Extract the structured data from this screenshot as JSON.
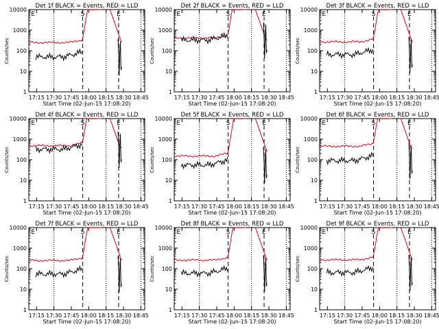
{
  "chart_data": [
    {
      "type": "line",
      "title": "Det 1f BLACK = Events, RED = LLD",
      "xlabel": "Start Time (02-Jun-15 17:08:20)",
      "ylabel": "Counts/sec",
      "yscale": "log",
      "ylim": [
        1,
        10000
      ],
      "xlim_minutes": [
        0,
        100
      ],
      "xticks": [
        "17:15",
        "17:30",
        "17:45",
        "18:00",
        "18:15",
        "18:30",
        "18:45"
      ],
      "markers": [
        "E",
        "S",
        "E"
      ],
      "events_level": 50,
      "lld_level": 250,
      "series": [
        {
          "name": "BLACK = Events",
          "color": "#000000"
        },
        {
          "name": "RED = LLD",
          "color": "#e0001a"
        }
      ]
    },
    {
      "type": "line",
      "title": "Det 2f BLACK = Events, RED = LLD",
      "xlabel": "Start Time (02-Jun-15 17:08:20)",
      "ylabel": "Counts/sec",
      "yscale": "log",
      "ylim": [
        1,
        10000
      ],
      "xlim_minutes": [
        0,
        100
      ],
      "xticks": [
        "17:15",
        "17:30",
        "17:45",
        "18:00",
        "18:15",
        "18:30",
        "18:45"
      ],
      "markers": [
        "E",
        "S",
        "E"
      ],
      "events_level": 330,
      "lld_level": 420,
      "series": [
        {
          "name": "BLACK = Events",
          "color": "#000000"
        },
        {
          "name": "RED = LLD",
          "color": "#e0001a"
        }
      ]
    },
    {
      "type": "line",
      "title": "Det 3f BLACK = Events, RED = LLD",
      "xlabel": "Start Time (02-Jun-15 17:08:20)",
      "ylabel": "Counts/sec",
      "yscale": "log",
      "ylim": [
        1,
        10000
      ],
      "xlim_minutes": [
        0,
        100
      ],
      "xticks": [
        "17:15",
        "17:30",
        "17:45",
        "18:00",
        "18:15",
        "18:30",
        "18:45"
      ],
      "markers": [
        "E",
        "S",
        "E"
      ],
      "events_level": 65,
      "lld_level": 270,
      "series": [
        {
          "name": "BLACK = Events",
          "color": "#000000"
        },
        {
          "name": "RED = LLD",
          "color": "#e0001a"
        }
      ]
    },
    {
      "type": "line",
      "title": "Det 4f BLACK = Events, RED = LLD",
      "xlabel": "Start Time (02-Jun-15 17:08:20)",
      "ylabel": "Counts/sec",
      "yscale": "log",
      "ylim": [
        1,
        10000
      ],
      "xlim_minutes": [
        0,
        100
      ],
      "xticks": [
        "17:15",
        "17:30",
        "17:45",
        "18:00",
        "18:15",
        "18:30",
        "18:45"
      ],
      "markers": [
        "E",
        "S",
        "E"
      ],
      "events_level": 320,
      "lld_level": 480,
      "series": [
        {
          "name": "BLACK = Events",
          "color": "#000000"
        },
        {
          "name": "RED = LLD",
          "color": "#e0001a"
        }
      ]
    },
    {
      "type": "line",
      "title": "Det 5f BLACK = Events, RED = LLD",
      "xlabel": "Start Time (02-Jun-15 17:08:20)",
      "ylabel": "Counts/sec",
      "yscale": "log",
      "ylim": [
        1,
        10000
      ],
      "xlim_minutes": [
        0,
        100
      ],
      "xticks": [
        "17:15",
        "17:30",
        "17:45",
        "18:00",
        "18:15",
        "18:30",
        "18:45"
      ],
      "markers": [
        "E",
        "S",
        "E"
      ],
      "events_level": 55,
      "lld_level": 150,
      "series": [
        {
          "name": "BLACK = Events",
          "color": "#000000"
        },
        {
          "name": "RED = LLD",
          "color": "#e0001a"
        }
      ]
    },
    {
      "type": "line",
      "title": "Det 6f BLACK = Events, RED = LLD",
      "xlabel": "Start Time (02-Jun-15 17:08:20)",
      "ylabel": "Counts/sec",
      "yscale": "log",
      "ylim": [
        1,
        10000
      ],
      "xlim_minutes": [
        0,
        100
      ],
      "xticks": [
        "17:15",
        "17:30",
        "17:45",
        "18:00",
        "18:15",
        "18:30",
        "18:45"
      ],
      "markers": [
        "E",
        "S",
        "E"
      ],
      "events_level": 90,
      "lld_level": 450,
      "series": [
        {
          "name": "BLACK = Events",
          "color": "#000000"
        },
        {
          "name": "RED = LLD",
          "color": "#e0001a"
        }
      ]
    },
    {
      "type": "line",
      "title": "Det 7f BLACK = Events, RED = LLD",
      "xlabel": "Start Time (02-Jun-15 17:08:20)",
      "ylabel": "Counts/sec",
      "yscale": "log",
      "ylim": [
        1,
        10000
      ],
      "xlim_minutes": [
        0,
        100
      ],
      "xticks": [
        "17:15",
        "17:30",
        "17:45",
        "18:00",
        "18:15",
        "18:30",
        "18:45"
      ],
      "markers": [
        "E",
        "S",
        "E"
      ],
      "events_level": 55,
      "lld_level": 250,
      "series": [
        {
          "name": "BLACK = Events",
          "color": "#000000"
        },
        {
          "name": "RED = LLD",
          "color": "#e0001a"
        }
      ]
    },
    {
      "type": "line",
      "title": "Det 8f BLACK = Events, RED = LLD",
      "xlabel": "Start Time (02-Jun-15 17:08:20)",
      "ylabel": "Counts/sec",
      "yscale": "log",
      "ylim": [
        1,
        10000
      ],
      "xlim_minutes": [
        0,
        100
      ],
      "xticks": [
        "17:15",
        "17:30",
        "17:45",
        "18:00",
        "18:15",
        "18:30",
        "18:45"
      ],
      "markers": [
        "E",
        "S",
        "E"
      ],
      "events_level": 60,
      "lld_level": 260,
      "series": [
        {
          "name": "BLACK = Events",
          "color": "#000000"
        },
        {
          "name": "RED = LLD",
          "color": "#e0001a"
        }
      ]
    },
    {
      "type": "line",
      "title": "Det 9f BLACK = Events, RED = LLD",
      "xlabel": "Start Time (02-Jun-15 17:08:20)",
      "ylabel": "Counts/sec",
      "yscale": "log",
      "ylim": [
        1,
        10000
      ],
      "xlim_minutes": [
        0,
        100
      ],
      "xticks": [
        "17:15",
        "17:30",
        "17:45",
        "18:00",
        "18:15",
        "18:30",
        "18:45"
      ],
      "markers": [
        "E",
        "S",
        "E"
      ],
      "events_level": 65,
      "lld_level": 270,
      "series": [
        {
          "name": "BLACK = Events",
          "color": "#000000"
        },
        {
          "name": "RED = LLD",
          "color": "#e0001a"
        }
      ]
    }
  ],
  "y_tick_labels": [
    "1",
    "10",
    "100",
    "1000",
    "10000"
  ]
}
